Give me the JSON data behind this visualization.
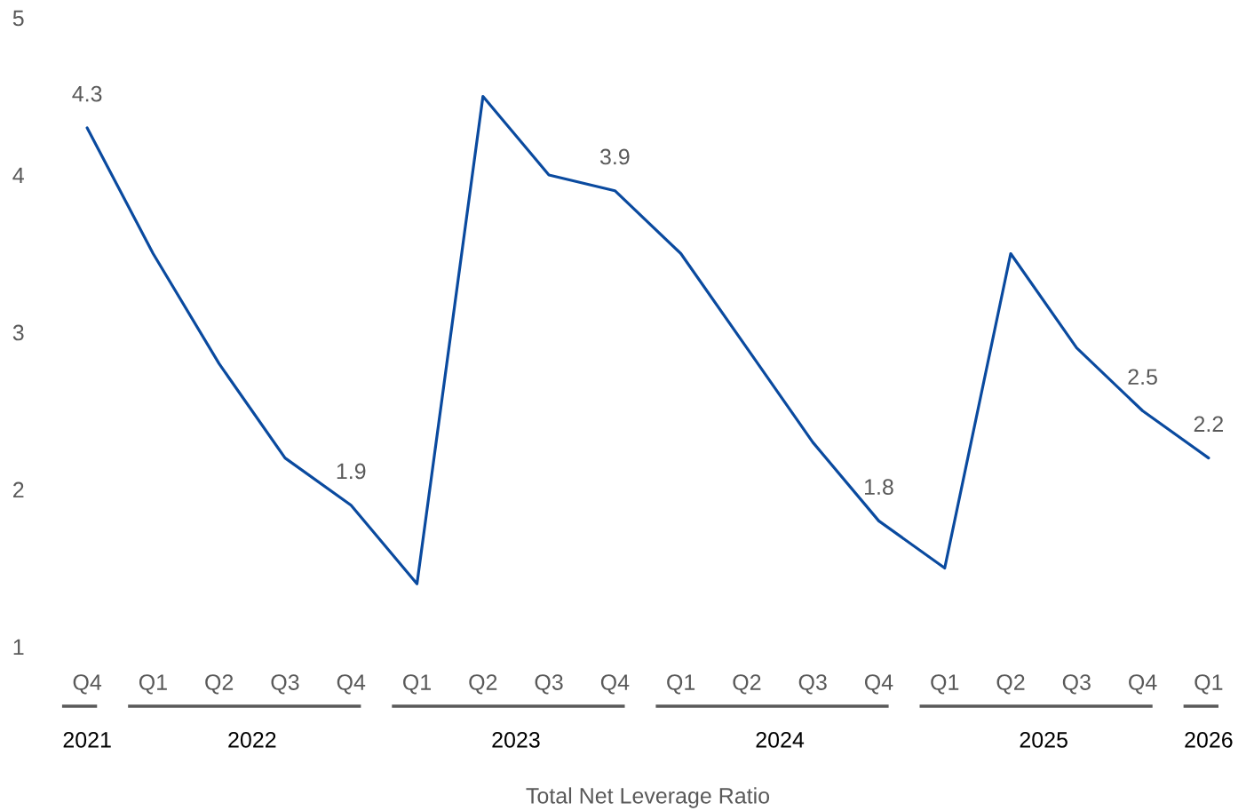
{
  "chart_data": {
    "type": "line",
    "xlabel": "Total Net Leverage Ratio",
    "categories": [
      "Q4",
      "Q1",
      "Q2",
      "Q3",
      "Q4",
      "Q1",
      "Q2",
      "Q3",
      "Q4",
      "Q1",
      "Q2",
      "Q3",
      "Q4",
      "Q1",
      "Q2",
      "Q3",
      "Q4",
      "Q1"
    ],
    "series": [
      {
        "color": "#0a4a9f",
        "values": [
          4.3,
          3.5,
          2.8,
          2.2,
          1.9,
          1.4,
          4.5,
          4.0,
          3.9,
          3.5,
          2.9,
          2.3,
          1.8,
          1.5,
          3.5,
          2.9,
          2.5,
          2.2
        ],
        "value_labels": [
          "4.3",
          null,
          null,
          null,
          "1.9",
          null,
          null,
          null,
          "3.9",
          null,
          null,
          null,
          "1.8",
          null,
          null,
          null,
          "2.5",
          "2.2"
        ]
      }
    ],
    "ylim": [
      1,
      5
    ],
    "yticks": [
      1,
      2,
      3,
      4,
      5
    ],
    "grid": false,
    "legend": false,
    "marker": "none",
    "line_style": "solid",
    "annotations": [
      "2021",
      "2022",
      "2023",
      "2024",
      "2025",
      "2026"
    ]
  }
}
